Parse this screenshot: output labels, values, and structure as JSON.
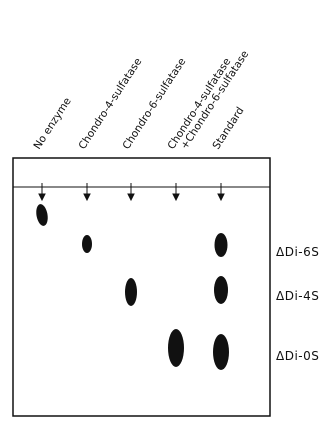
{
  "lanes": [
    {
      "label": [
        "No enzyme"
      ]
    },
    {
      "label": [
        "Chondro-4-sulfatase"
      ]
    },
    {
      "label": [
        "Chondro-6-sulfatase"
      ]
    },
    {
      "label": [
        "Chondro-4-sulfatase",
        "+Chondro-6-sulfatase"
      ]
    },
    {
      "label": [
        "Standard"
      ]
    }
  ],
  "spot_labels": [
    "ΔDi-6S",
    "ΔDi-4S",
    "ΔDi-0S"
  ]
}
